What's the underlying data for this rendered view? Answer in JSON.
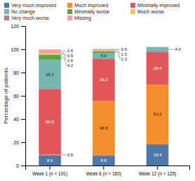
{
  "chart_data": {
    "type": "bar",
    "stacked": true,
    "categories": [
      "Week 1 (n = 191)",
      "Week 6 (n = 160)",
      "Week 12 (n = 125)"
    ],
    "series": [
      {
        "name": "Very much improved",
        "values": [
          8.9,
          8.8,
          18.4
        ],
        "value_labels": [
          "8.9",
          "8.8",
          "18.4"
        ]
      },
      {
        "name": "Much improved",
        "values": [
          0.5,
          46.9,
          51.2
        ],
        "value_labels": [
          "0.5",
          "46.9",
          "51.2"
        ]
      },
      {
        "name": "Minimally improved",
        "values": [
          56.5,
          36.3,
          28.4
        ],
        "value_labels": [
          "56.5",
          "36.3",
          "28.4"
        ]
      },
      {
        "name": "No change",
        "values": [
          25.1,
          5.0,
          4.0
        ],
        "value_labels": [
          "25.1",
          "5.0",
          "4.0"
        ]
      },
      {
        "name": "Minimally worse",
        "values": [
          4.2,
          1.3,
          0.0
        ],
        "value_labels": [
          "4.2",
          "1.3",
          null
        ]
      },
      {
        "name": "Much worse",
        "values": [
          1.6,
          1.3,
          0.0
        ],
        "value_labels": [
          "1.6",
          "1.3",
          null
        ]
      },
      {
        "name": "Very much worse",
        "values": [
          0.5,
          0.6,
          0.0
        ],
        "value_labels": [
          "0.5",
          "0.6",
          null
        ]
      },
      {
        "name": "Missing",
        "values": [
          2.6,
          0.0,
          0.0
        ],
        "value_labels": [
          "2.6",
          null,
          null
        ]
      }
    ],
    "ylabel": "Percentage of patients",
    "ylim": [
      0,
      120
    ],
    "yticks": [
      0,
      20,
      40,
      60,
      80,
      100,
      120
    ],
    "data_labels": true,
    "grid": false,
    "legend": "top"
  }
}
